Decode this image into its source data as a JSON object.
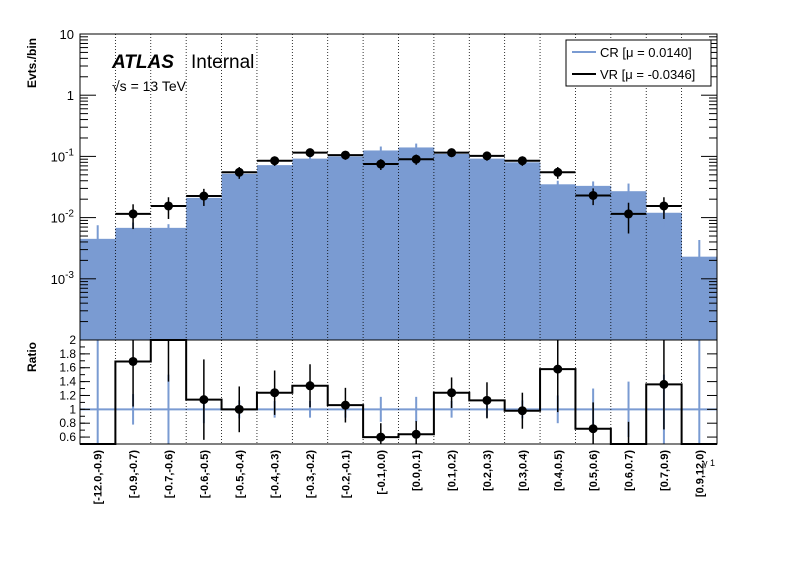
{
  "chart_data": {
    "type": "bar",
    "atlas_label": "ATLAS",
    "atlas_sub": "Internal",
    "energy_label": "√s = 13 TeV",
    "ylabel_top": "Evts./bin",
    "ylabel_bottom": "Ratio",
    "xlabel": "γ 1",
    "categories": [
      "[-12.0,-0.9)",
      "[-0.9,-0.7)",
      "[-0.7,-0.6)",
      "[-0.6,-0.5)",
      "[-0.5,-0.4)",
      "[-0.4,-0.3)",
      "[-0.3,-0.2)",
      "[-0.2,-0.1)",
      "[-0.1,0.0)",
      "[0.0,0.1)",
      "[0.1,0.2)",
      "[0.2,0.3)",
      "[0.3,0.4)",
      "[0.4,0.5)",
      "[0.5,0.6)",
      "[0.6,0.7)",
      "[0.7,0.9)",
      "[0.9,12.0)"
    ],
    "top_scale": "log",
    "top_ylim": [
      0.0001,
      10
    ],
    "top_ticks": [
      "10^-3",
      "10^-2",
      "10^-1",
      "1",
      "10"
    ],
    "series": [
      {
        "name": "CR [μ = 0.0140]",
        "color": "#7a9bd2",
        "values": [
          0.0045,
          0.0068,
          0.0068,
          0.021,
          0.052,
          0.072,
          0.092,
          0.1,
          0.125,
          0.14,
          0.11,
          0.092,
          0.08,
          0.035,
          0.033,
          0.027,
          0.012,
          0.0023
        ],
        "errors": [
          0.003,
          0.0015,
          0.001,
          0.004,
          0.006,
          0.008,
          0.009,
          0.009,
          0.02,
          0.022,
          0.009,
          0.008,
          0.008,
          0.005,
          0.006,
          0.009,
          0.005,
          0.002
        ]
      },
      {
        "name": "VR [μ = -0.0346]",
        "color": "#000000",
        "values": [
          null,
          0.0115,
          0.0155,
          0.0225,
          0.055,
          0.085,
          0.115,
          0.105,
          0.075,
          0.09,
          0.115,
          0.102,
          0.085,
          0.055,
          0.023,
          0.0115,
          0.0155,
          null
        ],
        "errors": [
          null,
          0.005,
          0.006,
          0.007,
          0.012,
          0.015,
          0.018,
          0.017,
          0.015,
          0.017,
          0.018,
          0.017,
          0.015,
          0.012,
          0.007,
          0.006,
          0.006,
          null
        ]
      }
    ],
    "ratio": {
      "ylim": [
        0.5,
        2.0
      ],
      "ticks": [
        0.6,
        0.8,
        1,
        1.2,
        1.4,
        1.6,
        1.8,
        2
      ],
      "reference_line": 1,
      "values": [
        0.0,
        1.69,
        2.3,
        1.14,
        1.0,
        1.24,
        1.34,
        1.06,
        0.6,
        0.64,
        1.24,
        1.13,
        0.98,
        1.58,
        0.72,
        0.42,
        1.36,
        0.0
      ],
      "errors": [
        null,
        0.65,
        0.9,
        0.58,
        0.33,
        0.32,
        0.31,
        0.25,
        0.2,
        0.19,
        0.22,
        0.26,
        0.26,
        0.62,
        0.38,
        0.4,
        0.65,
        null
      ],
      "cr_band_errors": [
        1.0,
        0.22,
        0.5,
        0.2,
        0.13,
        0.12,
        0.12,
        0.12,
        0.18,
        0.18,
        0.12,
        0.12,
        0.13,
        0.2,
        0.3,
        0.4,
        0.5,
        1.0
      ]
    },
    "legend_position": "top-right",
    "grid": "vertical-dotted"
  }
}
